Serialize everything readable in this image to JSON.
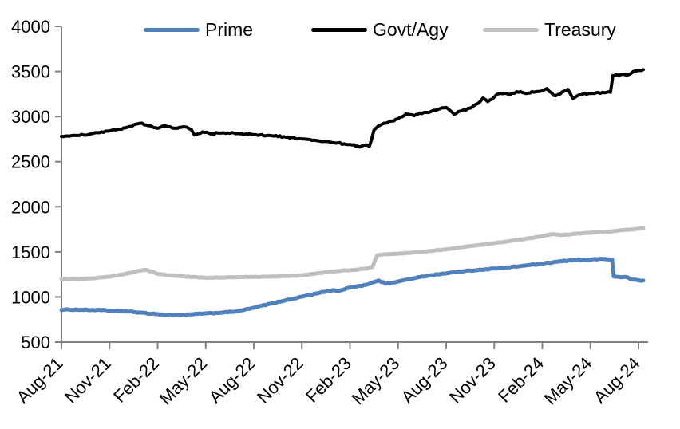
{
  "chart_data": {
    "type": "line",
    "title": "",
    "xlabel": "",
    "ylabel": "",
    "ylim": [
      500,
      4000
    ],
    "y_tick_step": 500,
    "y_tick_labels": [
      "500",
      "1000",
      "1500",
      "2000",
      "2500",
      "3000",
      "3500",
      "4000"
    ],
    "x_tick_labels": [
      "Aug-21",
      "Nov-21",
      "Feb-22",
      "May-22",
      "Aug-22",
      "Nov-22",
      "Feb-23",
      "May-23",
      "Aug-23",
      "Nov-23",
      "Feb-24",
      "May-24",
      "Aug-24"
    ],
    "x_tick_positions_months": [
      0,
      3,
      6,
      9,
      12,
      15,
      18,
      21,
      24,
      27,
      30,
      33,
      36
    ],
    "x_unit": "months since Aug-2021",
    "grid": false,
    "legend_position": "top",
    "axis_color": "#808080",
    "text_color": "#000000",
    "series": [
      {
        "name": "Prime",
        "color": "#4F81BD",
        "points": [
          [
            0,
            855
          ],
          [
            0.5,
            860
          ],
          [
            1,
            858
          ],
          [
            2,
            855
          ],
          [
            3,
            850
          ],
          [
            4,
            840
          ],
          [
            5,
            826
          ],
          [
            6,
            810
          ],
          [
            6.5,
            803
          ],
          [
            7,
            800
          ],
          [
            8,
            806
          ],
          [
            9,
            818
          ],
          [
            10,
            826
          ],
          [
            11,
            842
          ],
          [
            12,
            880
          ],
          [
            13,
            924
          ],
          [
            14,
            964
          ],
          [
            15,
            1004
          ],
          [
            16,
            1042
          ],
          [
            16.5,
            1060
          ],
          [
            17,
            1075
          ],
          [
            17.3,
            1068
          ],
          [
            18,
            1105
          ],
          [
            19,
            1135
          ],
          [
            19.8,
            1182
          ],
          [
            20.2,
            1148
          ],
          [
            21,
            1172
          ],
          [
            22,
            1208
          ],
          [
            23,
            1240
          ],
          [
            24,
            1262
          ],
          [
            25,
            1283
          ],
          [
            26,
            1300
          ],
          [
            27,
            1315
          ],
          [
            28,
            1330
          ],
          [
            29,
            1350
          ],
          [
            30,
            1368
          ],
          [
            31,
            1393
          ],
          [
            32,
            1408
          ],
          [
            32.5,
            1415
          ],
          [
            33,
            1412
          ],
          [
            33.5,
            1420
          ],
          [
            34,
            1418
          ],
          [
            34.35,
            1415
          ],
          [
            34.45,
            1228
          ],
          [
            35,
            1220
          ],
          [
            35.3,
            1218
          ],
          [
            35.5,
            1195
          ],
          [
            36,
            1186
          ],
          [
            36.3,
            1182
          ]
        ]
      },
      {
        "name": "Govt/Agy",
        "color": "#000000",
        "points": [
          [
            0,
            2780
          ],
          [
            1,
            2790
          ],
          [
            2,
            2815
          ],
          [
            3,
            2840
          ],
          [
            4,
            2875
          ],
          [
            4.9,
            2925
          ],
          [
            5.3,
            2905
          ],
          [
            6,
            2870
          ],
          [
            6.5,
            2895
          ],
          [
            7,
            2870
          ],
          [
            7.7,
            2885
          ],
          [
            8.1,
            2855
          ],
          [
            8.3,
            2795
          ],
          [
            8.8,
            2830
          ],
          [
            9.3,
            2808
          ],
          [
            10,
            2818
          ],
          [
            11,
            2812
          ],
          [
            12,
            2800
          ],
          [
            13,
            2790
          ],
          [
            14,
            2772
          ],
          [
            15,
            2752
          ],
          [
            16,
            2732
          ],
          [
            17,
            2710
          ],
          [
            18,
            2690
          ],
          [
            18.6,
            2662
          ],
          [
            19,
            2685
          ],
          [
            19.2,
            2665
          ],
          [
            19.5,
            2850
          ],
          [
            20,
            2915
          ],
          [
            20.6,
            2950
          ],
          [
            21,
            2975
          ],
          [
            21.5,
            3030
          ],
          [
            22,
            3008
          ],
          [
            22.6,
            3045
          ],
          [
            23,
            3050
          ],
          [
            23.5,
            3080
          ],
          [
            24,
            3100
          ],
          [
            24.5,
            3025
          ],
          [
            25,
            3065
          ],
          [
            25.6,
            3100
          ],
          [
            26,
            3145
          ],
          [
            26.3,
            3205
          ],
          [
            26.6,
            3165
          ],
          [
            27,
            3215
          ],
          [
            27.3,
            3255
          ],
          [
            28,
            3245
          ],
          [
            28.4,
            3275
          ],
          [
            29,
            3255
          ],
          [
            29.6,
            3275
          ],
          [
            30,
            3285
          ],
          [
            30.3,
            3310
          ],
          [
            30.7,
            3235
          ],
          [
            31,
            3245
          ],
          [
            31.6,
            3300
          ],
          [
            31.9,
            3200
          ],
          [
            32.3,
            3240
          ],
          [
            33,
            3255
          ],
          [
            34,
            3268
          ],
          [
            34.25,
            3270
          ],
          [
            34.4,
            3455
          ],
          [
            35,
            3470
          ],
          [
            35.4,
            3465
          ],
          [
            35.8,
            3505
          ],
          [
            36.3,
            3520
          ]
        ]
      },
      {
        "name": "Treasury",
        "color": "#BFBFBF",
        "points": [
          [
            0,
            1200
          ],
          [
            1,
            1198
          ],
          [
            2,
            1206
          ],
          [
            3,
            1225
          ],
          [
            4,
            1256
          ],
          [
            5,
            1295
          ],
          [
            5.3,
            1302
          ],
          [
            6,
            1256
          ],
          [
            7,
            1235
          ],
          [
            8,
            1223
          ],
          [
            9,
            1212
          ],
          [
            10,
            1216
          ],
          [
            11,
            1219
          ],
          [
            12,
            1222
          ],
          [
            13,
            1226
          ],
          [
            14,
            1231
          ],
          [
            15,
            1240
          ],
          [
            16,
            1263
          ],
          [
            17,
            1283
          ],
          [
            18,
            1297
          ],
          [
            19,
            1315
          ],
          [
            19.4,
            1332
          ],
          [
            19.7,
            1462
          ],
          [
            20,
            1470
          ],
          [
            21,
            1480
          ],
          [
            22,
            1494
          ],
          [
            23,
            1510
          ],
          [
            24,
            1527
          ],
          [
            25,
            1552
          ],
          [
            26,
            1574
          ],
          [
            27,
            1597
          ],
          [
            28,
            1620
          ],
          [
            29,
            1646
          ],
          [
            30,
            1674
          ],
          [
            30.6,
            1696
          ],
          [
            31.2,
            1686
          ],
          [
            32,
            1700
          ],
          [
            33,
            1712
          ],
          [
            34,
            1724
          ],
          [
            35,
            1740
          ],
          [
            36,
            1757
          ],
          [
            36.3,
            1763
          ]
        ]
      }
    ]
  }
}
